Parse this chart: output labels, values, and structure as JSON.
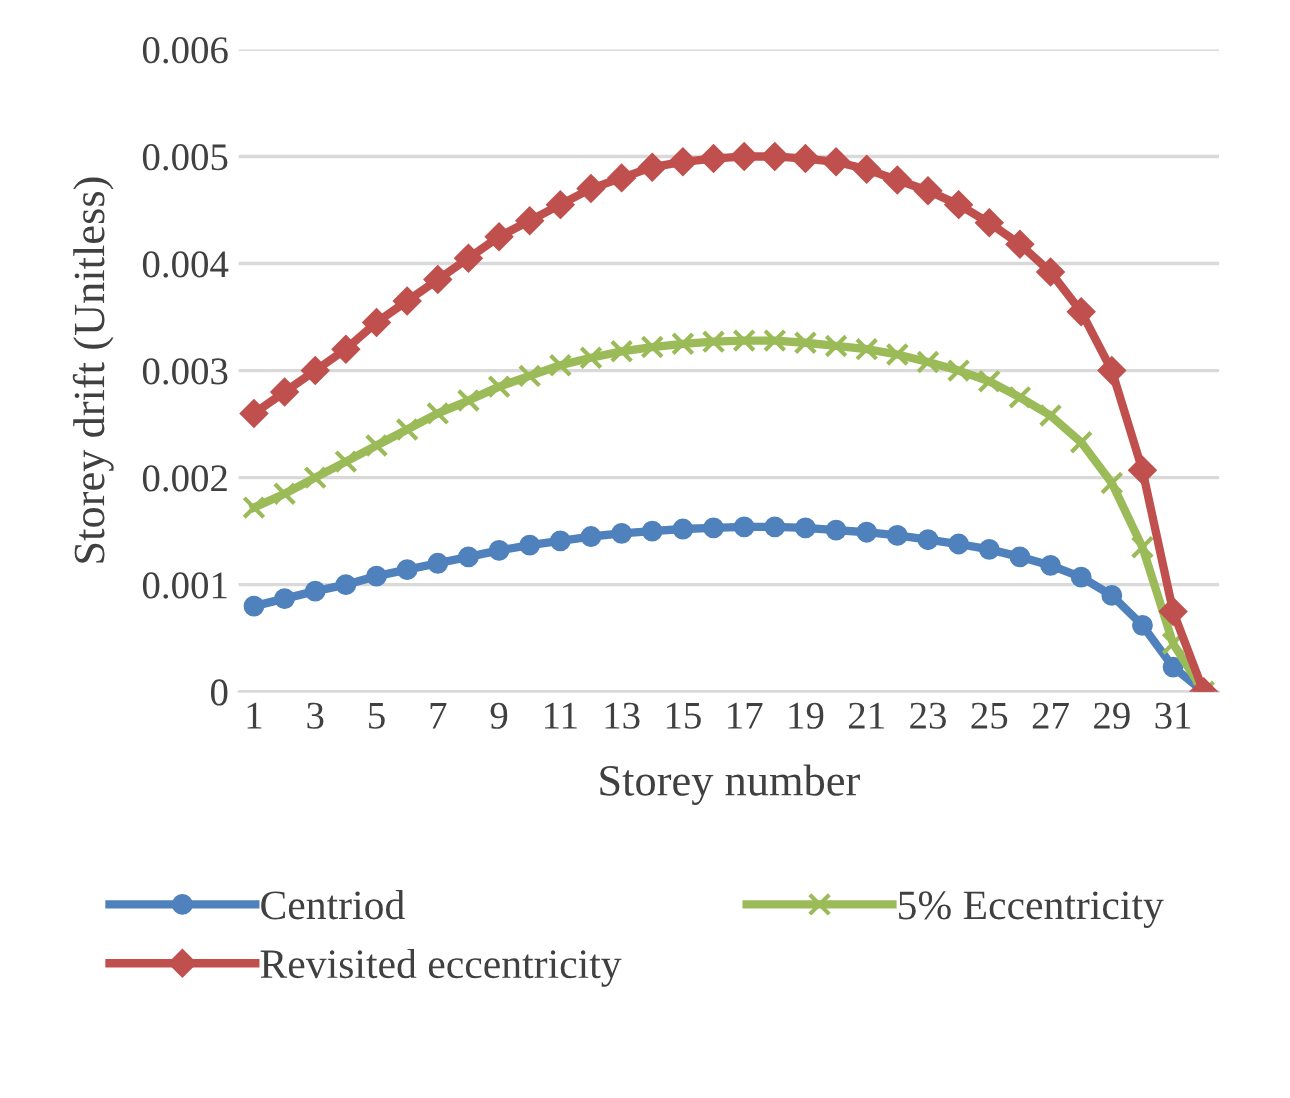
{
  "chart_data": {
    "type": "line",
    "xlabel": "Storey number",
    "ylabel": "Storey drift (Unitless)",
    "categories": [
      "1",
      null,
      "3",
      null,
      "5",
      null,
      "7",
      null,
      "9",
      null,
      "11",
      null,
      "13",
      null,
      "15",
      null,
      "17",
      null,
      "19",
      null,
      "21",
      null,
      "23",
      null,
      "25",
      null,
      "27",
      null,
      "29",
      null,
      "31",
      null
    ],
    "series": [
      {
        "name": "Centriod",
        "color": "#4f81bd",
        "marker": "circle",
        "values": [
          0.0008,
          0.00087,
          0.00094,
          0.001,
          0.00108,
          0.00114,
          0.0012,
          0.00126,
          0.00132,
          0.00137,
          0.00141,
          0.00145,
          0.00148,
          0.0015,
          0.00152,
          0.00153,
          0.00154,
          0.00154,
          0.00153,
          0.00151,
          0.00149,
          0.00146,
          0.00142,
          0.00138,
          0.00133,
          0.00126,
          0.00118,
          0.00107,
          0.0009,
          0.00062,
          0.00023,
          0
        ]
      },
      {
        "name": "5% Eccentricity",
        "color": "#9bbb59",
        "marker": "cross",
        "values": [
          0.00172,
          0.00185,
          0.002,
          0.00215,
          0.0023,
          0.00245,
          0.0026,
          0.00272,
          0.00285,
          0.00295,
          0.00305,
          0.00312,
          0.00318,
          0.00322,
          0.00325,
          0.00327,
          0.00328,
          0.00328,
          0.00326,
          0.00323,
          0.0032,
          0.00315,
          0.00308,
          0.003,
          0.0029,
          0.00275,
          0.00258,
          0.00233,
          0.00195,
          0.00135,
          0.00045,
          0
        ]
      },
      {
        "name": "Revisited eccentricity",
        "color": "#c0504d",
        "marker": "diamond",
        "values": [
          0.0026,
          0.0028,
          0.003,
          0.0032,
          0.00345,
          0.00365,
          0.00385,
          0.00405,
          0.00425,
          0.0044,
          0.00455,
          0.0047,
          0.0048,
          0.0049,
          0.00495,
          0.00498,
          0.005,
          0.005,
          0.00498,
          0.00495,
          0.00488,
          0.00478,
          0.00468,
          0.00455,
          0.00438,
          0.00418,
          0.00392,
          0.00355,
          0.003,
          0.00207,
          0.00075,
          0
        ]
      }
    ],
    "ylim": [
      0,
      0.006
    ],
    "yticks": [
      0,
      0.001,
      0.002,
      0.003,
      0.004,
      0.005,
      0.006
    ],
    "grid": "y",
    "legend": "bottom"
  }
}
